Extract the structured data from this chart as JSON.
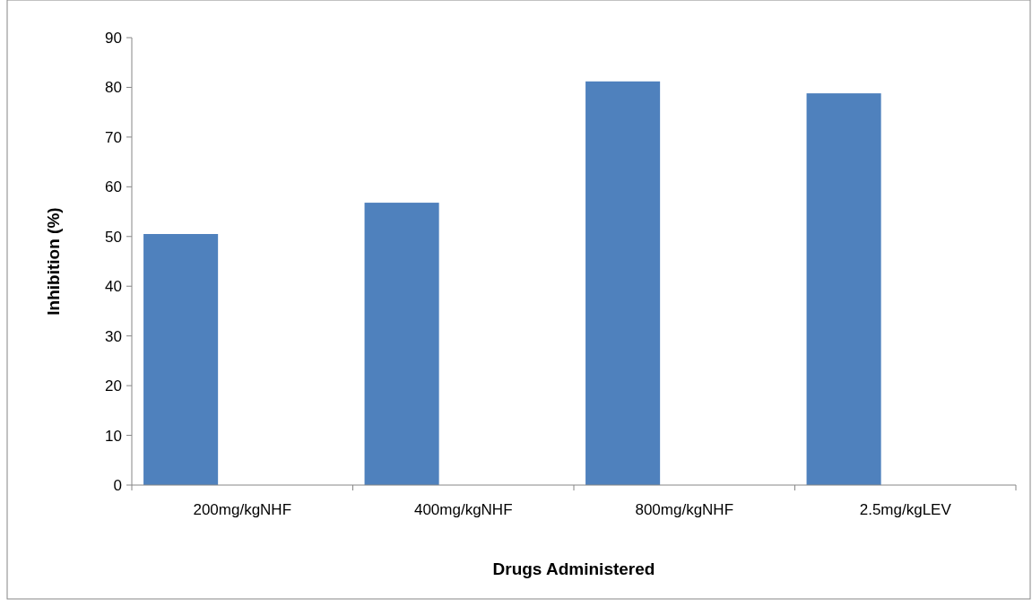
{
  "chart_data": {
    "type": "bar",
    "xlabel": "Drugs Administered",
    "ylabel": "Inhibition (%)",
    "categories": [
      "200mg/kgNHF",
      "400mg/kgNHF",
      "800mg/kgNHF",
      "2.5mg/kgLEV"
    ],
    "values": [
      50.5,
      56.8,
      81.2,
      78.8
    ],
    "color": "#4f81bd",
    "ylim": [
      0,
      90
    ],
    "yticks": [
      0,
      10,
      20,
      30,
      40,
      50,
      60,
      70,
      80,
      90
    ],
    "grid": false
  }
}
